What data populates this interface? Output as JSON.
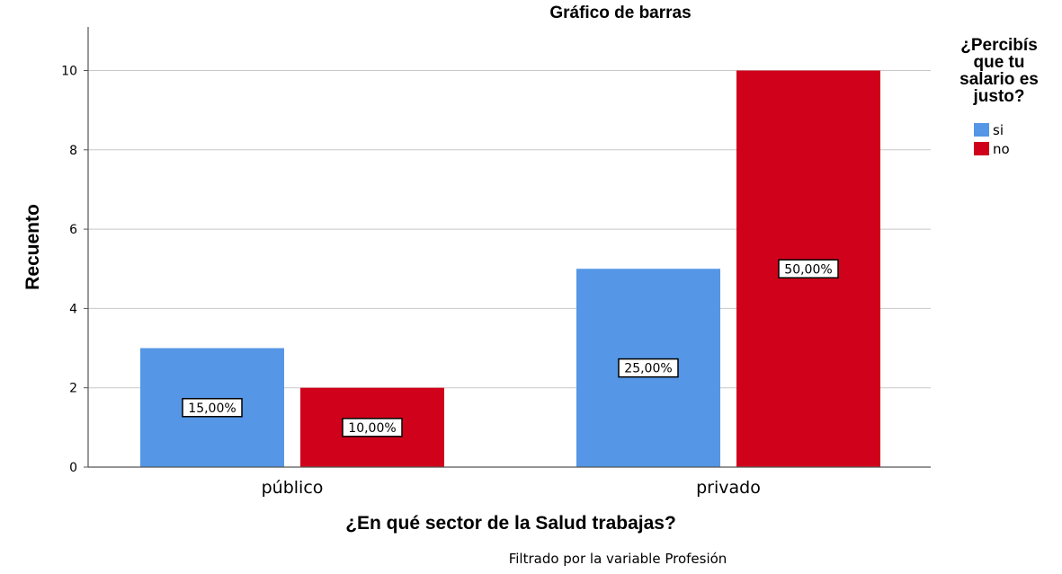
{
  "chart_data": {
    "type": "bar",
    "title": "Gráfico de barras",
    "xlabel": "¿En qué sector de la Salud trabajas?",
    "ylabel": "Recuento",
    "categories": [
      "público",
      "privado"
    ],
    "series": [
      {
        "name": "si",
        "color": "#5596E6",
        "values": [
          3,
          5
        ],
        "labels": [
          "15,00%",
          "25,00%"
        ]
      },
      {
        "name": "no",
        "color": "#D0021B",
        "values": [
          2,
          10
        ],
        "labels": [
          "10,00%",
          "50,00%"
        ]
      }
    ],
    "ylim": [
      0,
      11
    ],
    "yticks": [
      0,
      2,
      4,
      6,
      8,
      10
    ],
    "grid": true,
    "legend": {
      "title_lines": [
        "¿Percibís",
        "que tu",
        "salario es",
        "justo?"
      ],
      "placement": "right"
    },
    "footnote": "Filtrado por la variable Profesión"
  }
}
